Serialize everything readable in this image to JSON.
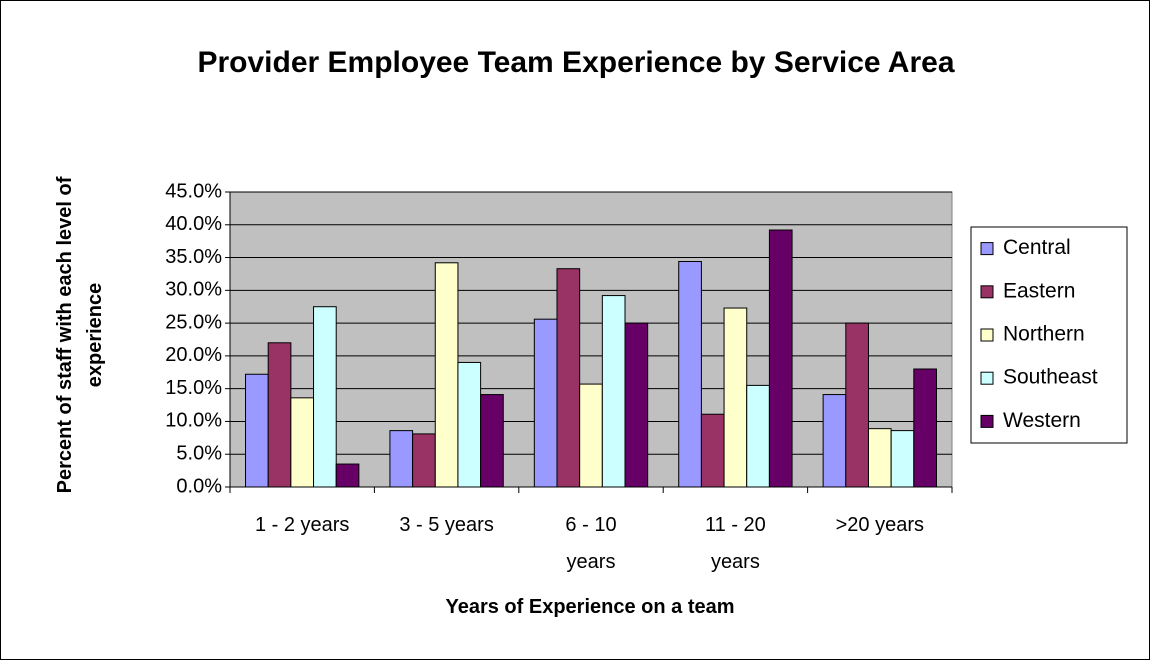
{
  "chart_data": {
    "type": "bar",
    "title": "Provider Employee Team Experience by Service Area",
    "x_label": "Years of Experience on a team",
    "y_label": "Percent of staff with each level of experience",
    "categories": [
      "1 - 2 years",
      "3 - 5 years",
      "6 - 10 years",
      "11 - 20 years",
      ">20 years"
    ],
    "series": [
      {
        "name": "Central",
        "color": "#9999ff",
        "values": [
          17.2,
          8.6,
          25.6,
          34.4,
          14.1
        ]
      },
      {
        "name": "Eastern",
        "color": "#993366",
        "values": [
          22.0,
          8.1,
          33.3,
          11.1,
          25.0
        ]
      },
      {
        "name": "Northern",
        "color": "#ffffcc",
        "values": [
          13.6,
          34.2,
          15.7,
          27.3,
          8.9
        ]
      },
      {
        "name": "Southeast",
        "color": "#ccffff",
        "values": [
          27.5,
          19.0,
          29.2,
          15.5,
          8.6
        ]
      },
      {
        "name": "Western",
        "color": "#660066",
        "values": [
          3.5,
          14.1,
          25.0,
          39.2,
          18.0
        ]
      }
    ],
    "ylim": [
      0,
      45
    ],
    "yticks": [
      {
        "value": 0,
        "label": "0.0%"
      },
      {
        "value": 5,
        "label": "5.0%"
      },
      {
        "value": 10,
        "label": "10.0%"
      },
      {
        "value": 15,
        "label": "15.0%"
      },
      {
        "value": 20,
        "label": "20.0%"
      },
      {
        "value": 25,
        "label": "25.0%"
      },
      {
        "value": 30,
        "label": "30.0%"
      },
      {
        "value": 35,
        "label": "35.0%"
      },
      {
        "value": 40,
        "label": "40.0%"
      },
      {
        "value": 45,
        "label": "45.0%"
      }
    ],
    "grid": true,
    "plot_background": "#c0c0c0",
    "legend": "right"
  }
}
